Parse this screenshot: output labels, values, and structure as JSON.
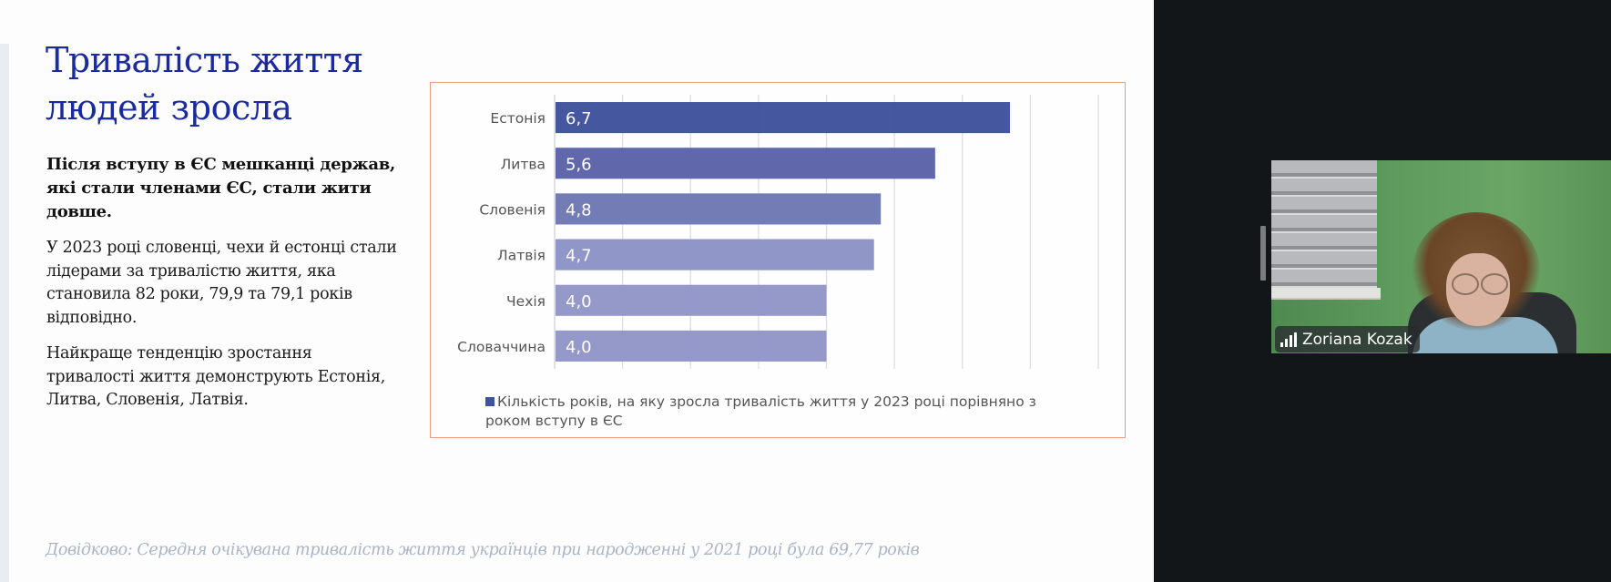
{
  "slide": {
    "title": "Тривалість життя людей зросла",
    "lead": "Після вступу в ЄС мешканці держав, які стали членами ЄС, стали жити довше.",
    "paragraphs": [
      "У 2023 році словенці, чехи й естонці стали лідерами за тривалістю життя, яка становила 82 роки, 79,9 та 79,1 років відповідно.",
      "Найкраще тенденцію зростання тривалості життя демонструють Естонія, Литва, Словенія, Латвія."
    ],
    "footer": "Довідково: Середня очікувана тривалість життя українців при народженні у 2021 році була 69,77 років"
  },
  "chart_data": {
    "type": "bar",
    "orientation": "horizontal",
    "title": "",
    "categories": [
      "Естонія",
      "Литва",
      "Словенія",
      "Латвія",
      "Чехія",
      "Словаччина"
    ],
    "values": [
      6.7,
      5.6,
      4.8,
      4.7,
      4.0,
      4.0
    ],
    "data_labels": [
      "6,7",
      "5,6",
      "4,8",
      "4,7",
      "4,0",
      "4,0"
    ],
    "bar_colors": [
      "#3f529c",
      "#5b63a8",
      "#6f78b4",
      "#8d93c6",
      "#9196c8",
      "#9196c8"
    ],
    "xlim": [
      0,
      8
    ],
    "grid": true,
    "grid_step": 1,
    "xlabel": "",
    "ylabel": "",
    "legend": {
      "position": "bottom",
      "entries": [
        "Кількість років, на яку зросла тривалість життя у 2023 році порівняно з роком вступу в ЄС"
      ],
      "color": "#3f529c"
    }
  },
  "video": {
    "participant_name": "Zoriana Kozak",
    "signal_icon": "signal-bars-icon"
  },
  "colors": {
    "title": "#1a2aa0",
    "chart_border": "#ec9b7c",
    "panel": "#131619",
    "footer": "#aab4c4"
  }
}
